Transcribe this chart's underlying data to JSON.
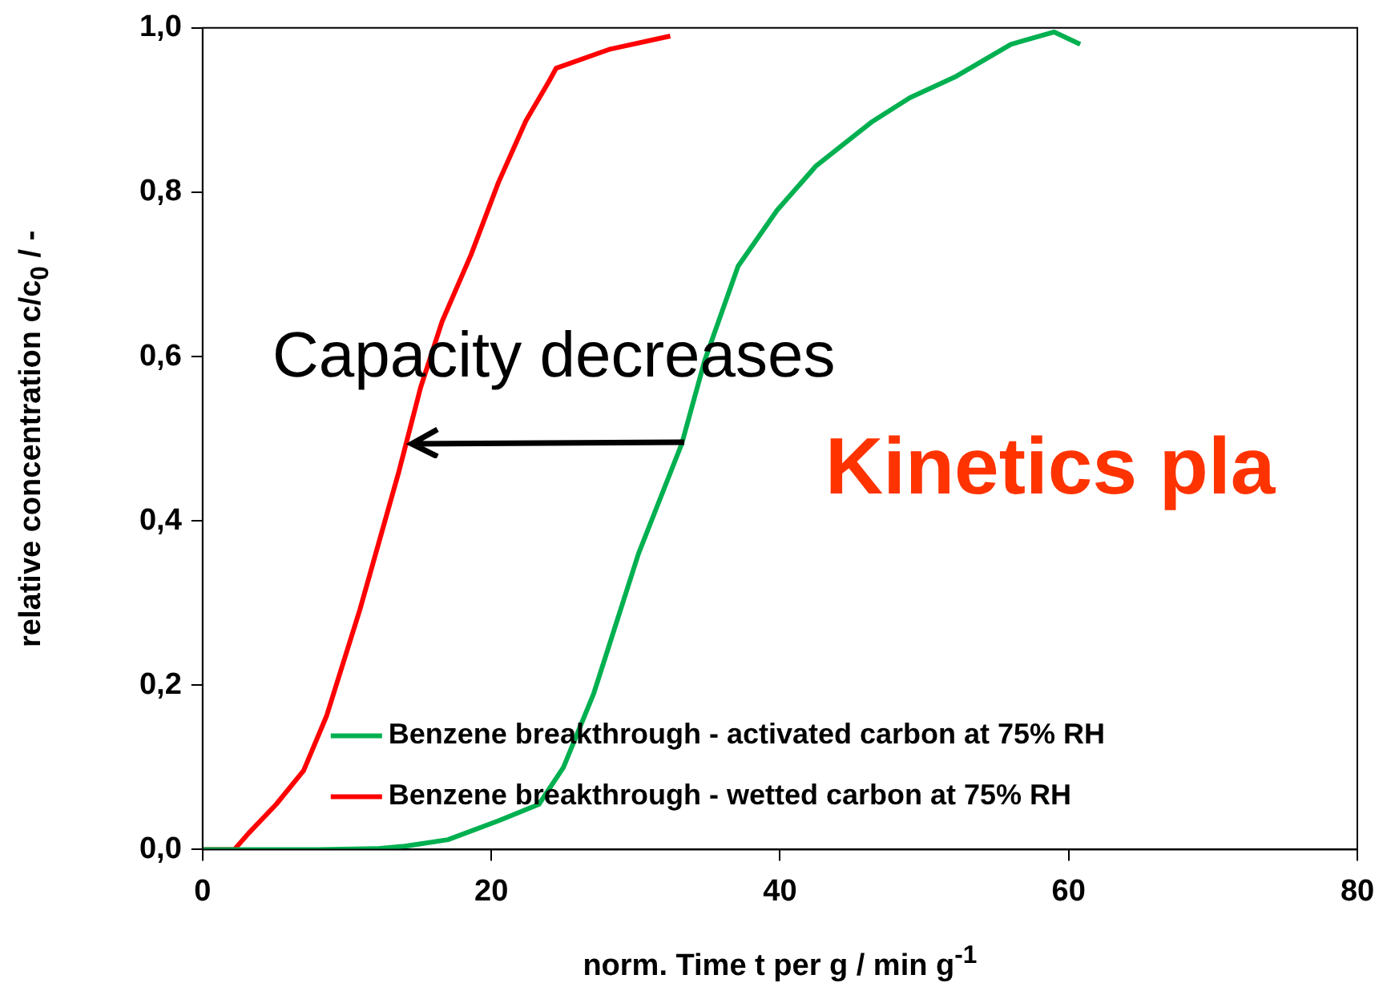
{
  "chart_data": {
    "type": "line",
    "xlabel": "norm. Time t per g / min g$^{-1}$",
    "ylabel": "relative concentration c/c$_{0}$ / -",
    "annotations": [
      "Capacity decreases",
      "Kinetics pla"
    ],
    "xlim": [
      0,
      80
    ],
    "xticks": [
      0,
      20,
      40,
      60,
      80
    ],
    "ylim": [
      0,
      1
    ],
    "yticks": [
      {
        "value": 0,
        "label": "0,0"
      },
      {
        "value": 0.2,
        "label": "0,2"
      },
      {
        "value": 0.4,
        "label": "0,4"
      },
      {
        "value": 0.6,
        "label": "0,6"
      },
      {
        "value": 0.8,
        "label": "0,8"
      },
      {
        "value": 1,
        "label": "1,0"
      }
    ],
    "grid": false,
    "legend": "bottom",
    "marker": "none",
    "line_style": "solid",
    "series": [
      {
        "name": "Benzene breakthrough - activated carbon at 75% RH",
        "color": "#00b050",
        "x": [
          0,
          8,
          12,
          14,
          17,
          20.5,
          23.3,
          25,
          27.1,
          30.2,
          33.2,
          34.8,
          37.1,
          39.8,
          42.5,
          46.4,
          49,
          52.1,
          56,
          59,
          60.8
        ],
        "values": [
          0,
          0,
          0.001,
          0.004,
          0.012,
          0.035,
          0.055,
          0.1,
          0.19,
          0.36,
          0.494,
          0.596,
          0.71,
          0.778,
          0.832,
          0.886,
          0.915,
          0.94,
          0.98,
          0.995,
          0.98
        ]
      },
      {
        "name": "Benzene breakthrough - wetted carbon at 75% RH",
        "color": "#ff0000",
        "x": [
          0,
          2.2,
          3.2,
          5.1,
          7,
          8.6,
          10.9,
          13.6,
          15.1,
          16.6,
          18.6,
          20.5,
          22.4,
          24,
          24.5,
          28.2,
          32.4
        ],
        "values": [
          0,
          0,
          0.02,
          0.055,
          0.096,
          0.163,
          0.292,
          0.46,
          0.562,
          0.643,
          0.724,
          0.812,
          0.887,
          0.935,
          0.951,
          0.974,
          0.99
        ]
      }
    ]
  }
}
